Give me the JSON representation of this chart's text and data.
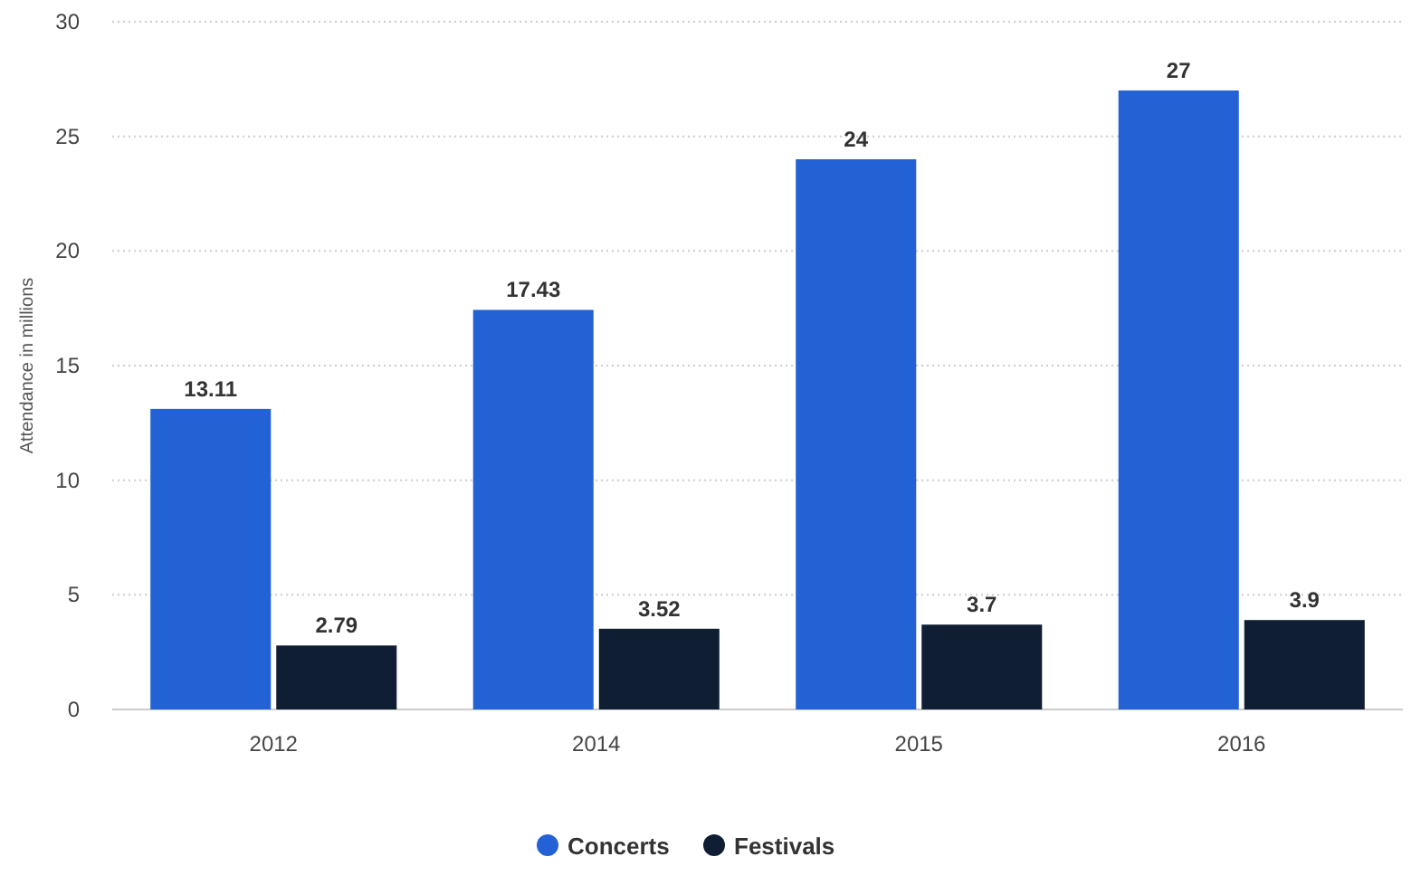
{
  "chart_data": {
    "type": "bar",
    "ylabel": "Attendance in millions",
    "categories": [
      "2012",
      "2014",
      "2015",
      "2016"
    ],
    "series": [
      {
        "name": "Concerts",
        "color": "#2262d4",
        "values": [
          13.11,
          17.43,
          24,
          27
        ]
      },
      {
        "name": "Festivals",
        "color": "#0f1e33",
        "values": [
          2.79,
          3.52,
          3.7,
          3.9
        ]
      }
    ],
    "ylim": [
      0,
      30
    ],
    "yticks": [
      0,
      5,
      10,
      15,
      20,
      25,
      30
    ],
    "grid": "y",
    "legend": "bottom",
    "data_labels": true
  }
}
